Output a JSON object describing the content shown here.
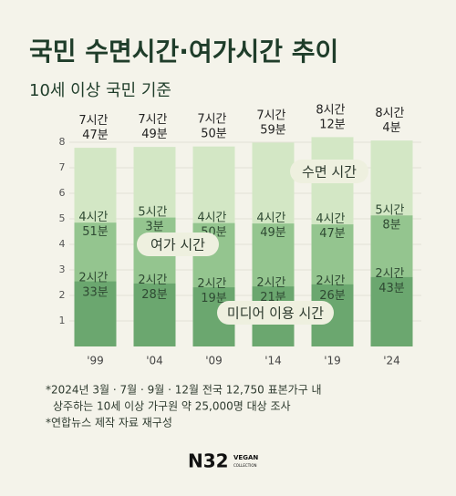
{
  "chart_data": {
    "type": "bar",
    "title": "국민 수면시간·여가시간 추이",
    "subtitle": "10세 이상 국민 기준",
    "categories": [
      "'99",
      "'04",
      "'09",
      "'14",
      "'19",
      "'24"
    ],
    "series": [
      {
        "name": "수면 시간",
        "color": "#d3e7c5",
        "values": [
          7.783,
          7.817,
          7.833,
          7.983,
          8.2,
          8.067
        ],
        "value_labels": [
          "7시간 47분",
          "7시간 49분",
          "7시간 50분",
          "7시간 59분",
          "8시간 12분",
          "8시간 4분"
        ]
      },
      {
        "name": "여가 시간",
        "color": "#94c58f",
        "values": [
          4.85,
          5.05,
          4.833,
          4.817,
          4.783,
          5.133
        ],
        "value_labels": [
          "4시간 51분",
          "5시간 3분",
          "4시간 50분",
          "4시간 49분",
          "4시간 47분",
          "5시간 8분"
        ]
      },
      {
        "name": "미디어 이용 시간",
        "color": "#6ba76f",
        "values": [
          2.55,
          2.467,
          2.317,
          2.35,
          2.433,
          2.717
        ],
        "value_labels": [
          "2시간 33분",
          "2시간 28분",
          "2시간 19분",
          "2시간 21분",
          "2시간 26분",
          "2시간 43분"
        ]
      }
    ],
    "ylim": [
      0,
      8.5
    ],
    "yticks": [
      1,
      2,
      3,
      4,
      5,
      6,
      7,
      8
    ],
    "grid": true,
    "notes": [
      "*2024년 3월 · 7월 · 9월 · 12월 전국 12,750 표본가구 내",
      "상주하는 10세 이상 가구원 약 25,000명 대상 조사",
      "*연합뉴스 제작 자료 재구성"
    ],
    "logo": {
      "main": "N32",
      "top": "VEGAN",
      "bottom": "COLLECTION"
    }
  }
}
